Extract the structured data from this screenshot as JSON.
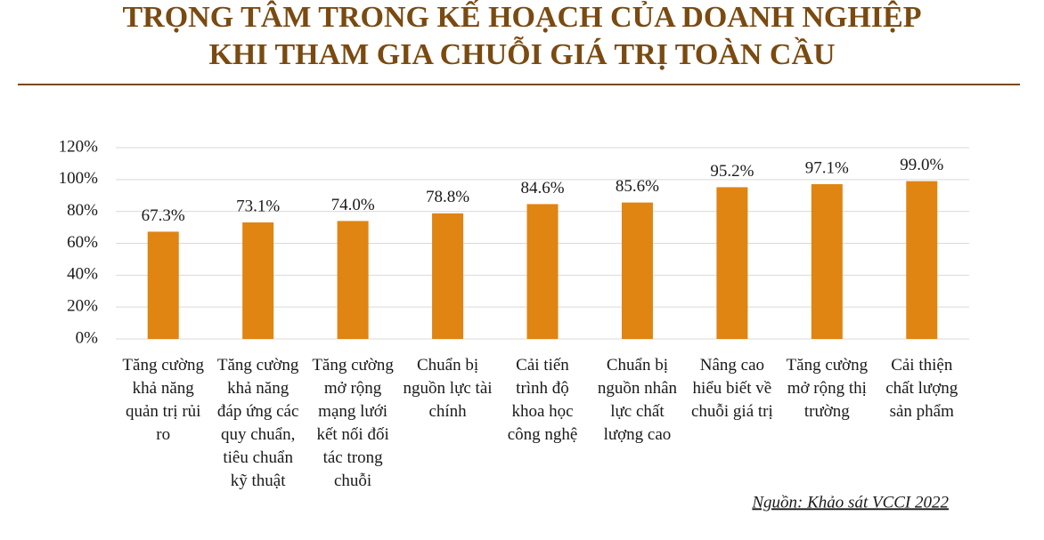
{
  "chart_data": {
    "type": "bar",
    "title": [
      "TRỌNG TÂM TRONG KẾ HOẠCH CỦA DOANH NGHIỆP",
      "KHI THAM GIA CHUỖI GIÁ TRỊ TOÀN CẦU"
    ],
    "categories": [
      "Tăng cường khả năng quản trị rủi ro",
      "Tăng cường khả năng đáp ứng các quy chuẩn, tiêu chuẩn kỹ thuật",
      "Tăng cường mở rộng mạng lưới kết nối đối tác trong chuỗi",
      "Chuẩn bị nguồn lực tài chính",
      "Cải tiến trình độ khoa học công nghệ",
      "Chuẩn bị nguồn nhân lực chất lượng cao",
      "Nâng cao hiểu biết về chuỗi giá trị",
      "Tăng cường mở rộng thị trường",
      "Cải thiện chất lượng sản phẩm"
    ],
    "values": [
      67.3,
      73.1,
      74.0,
      78.8,
      84.6,
      85.6,
      95.2,
      97.1,
      99.0
    ],
    "value_labels": [
      "67.3%",
      "73.1%",
      "74.0%",
      "78.8%",
      "84.6%",
      "85.6%",
      "95.2%",
      "97.1%",
      "99.0%"
    ],
    "color": "#e08412",
    "ylim": [
      0,
      120
    ],
    "yticks": [
      {
        "value": 0,
        "label": "0%"
      },
      {
        "value": 20,
        "label": "20%"
      },
      {
        "value": 40,
        "label": "40%"
      },
      {
        "value": 60,
        "label": "60%"
      },
      {
        "value": 80,
        "label": "80%"
      },
      {
        "value": 100,
        "label": "100%"
      },
      {
        "value": 120,
        "label": "120%"
      }
    ],
    "grid": true,
    "source": "Nguồn: Khảo sát VCCI 2022"
  }
}
